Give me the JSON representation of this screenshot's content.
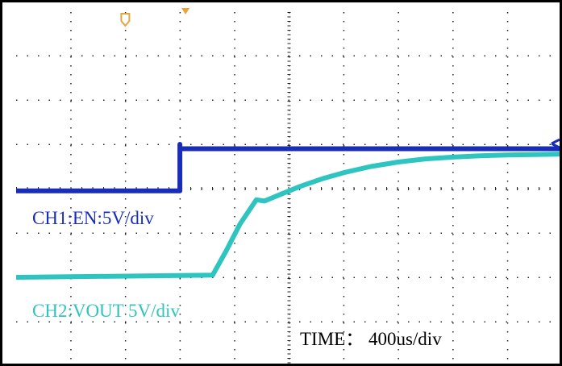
{
  "colors": {
    "ch1": "#1a2db8",
    "ch2": "#2ec4c0",
    "trigger_marker": "#e8a43c",
    "ch2_label": "#2ec4c0",
    "ch1_label": "#1a2db8",
    "grid": "#222222"
  },
  "chart_data": {
    "type": "line",
    "grid": true,
    "grid_divisions": {
      "x": 10,
      "y": 8
    },
    "x_unit": "div",
    "y_unit": "div",
    "xlim": [
      0,
      10
    ],
    "ylim": [
      0,
      8
    ],
    "annotations": {
      "ch1_label": "CH1:EN:5V/div",
      "ch2_label": "CH2:VOUT 5V/div",
      "time_label": "TIME： 400us/div"
    },
    "series": [
      {
        "name": "CH1:EN:5V/div",
        "color_key": "ch1",
        "x": [
          0,
          3.0,
          3.0,
          3.0,
          10
        ],
        "y": [
          3.95,
          3.95,
          5.0,
          4.9,
          4.9
        ]
      },
      {
        "name": "CH2:VOUT 5V/div",
        "color_key": "ch2",
        "x": [
          0,
          3.6,
          3.85,
          4.1,
          4.4,
          4.55,
          4.8,
          5.2,
          5.6,
          6.0,
          6.5,
          7.0,
          7.5,
          8.0,
          8.5,
          9.0,
          9.5,
          10
        ],
        "y": [
          2.0,
          2.05,
          2.6,
          3.2,
          3.75,
          3.72,
          3.85,
          4.05,
          4.22,
          4.36,
          4.5,
          4.6,
          4.67,
          4.71,
          4.74,
          4.76,
          4.77,
          4.78
        ]
      }
    ]
  }
}
